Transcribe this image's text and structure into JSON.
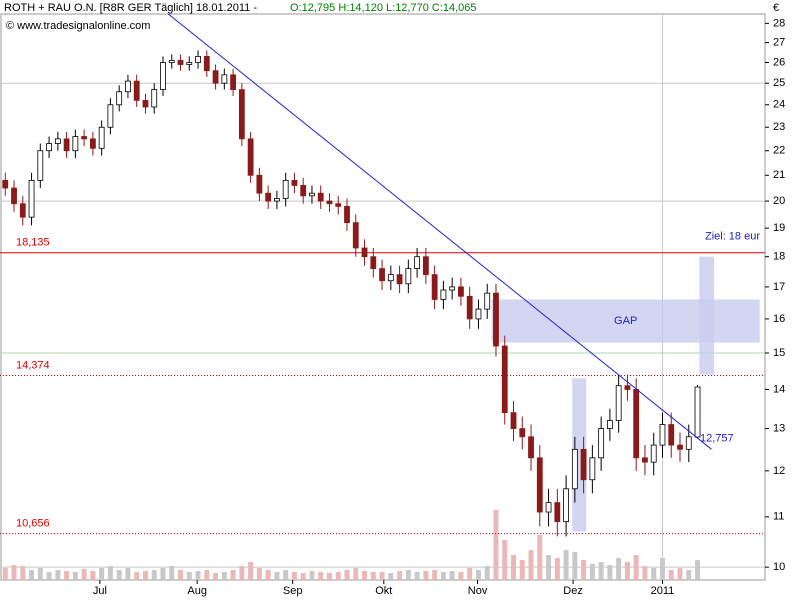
{
  "chart_data": {
    "type": "candlestick",
    "title": "ROTH + RAU O.N. [R8R GER  Täglich] 18.01.2011 -",
    "quote": "O:12,795 H:14,120 L:12,770 C:14,065",
    "subtitle": "© www.tradesignalonline.com",
    "unit": "€",
    "log_scale": true,
    "ylim": [
      9.76,
      28.5
    ],
    "yticks": [
      10,
      11,
      12,
      13,
      14,
      15,
      16,
      17,
      18,
      19,
      20,
      21,
      22,
      23,
      24,
      25,
      26,
      27,
      28
    ],
    "xlim": [
      -0.6,
      86.7
    ],
    "xticks": [
      {
        "value": 10.8,
        "label": "Jul"
      },
      {
        "value": 21.9,
        "label": "Aug"
      },
      {
        "value": 32.8,
        "label": "Sep"
      },
      {
        "value": 43.2,
        "label": "Okt"
      },
      {
        "value": 53.9,
        "label": "Nov"
      },
      {
        "value": 64.8,
        "label": "Dez"
      },
      {
        "value": 75.0,
        "label": "2011"
      }
    ],
    "up_color": "#ffffff",
    "down_color": "#8b1a1a",
    "open": [
      20.8,
      20.5,
      19.9,
      19.4,
      20.8,
      22.0,
      22.3,
      22.5,
      22.0,
      22.6,
      22.5,
      22.1,
      23.0,
      24.0,
      24.6,
      25.1,
      24.2,
      23.9,
      24.7,
      26.0,
      26.1,
      25.9,
      26.0,
      26.3,
      25.6,
      25.0,
      25.4,
      24.7,
      22.5,
      21.0,
      20.3,
      20.0,
      20.1,
      20.8,
      20.6,
      20.2,
      20.3,
      20.0,
      19.9,
      19.8,
      19.2,
      18.3,
      18.0,
      17.6,
      17.2,
      17.4,
      17.1,
      17.6,
      18.0,
      17.4,
      16.6,
      16.9,
      17.0,
      16.7,
      16.0,
      16.3,
      16.8,
      15.2,
      13.4,
      13.0,
      12.8,
      12.3,
      11.1,
      11.3,
      10.9,
      11.6,
      12.5,
      11.8,
      12.3,
      13.0,
      13.2,
      14.1,
      14.0,
      12.3,
      12.2,
      12.6,
      13.1,
      12.6,
      12.5,
      12.795
    ],
    "high": [
      21.1,
      20.8,
      20.2,
      21.1,
      22.3,
      22.6,
      22.8,
      22.8,
      22.9,
      22.9,
      22.8,
      23.3,
      24.3,
      24.9,
      25.4,
      25.4,
      24.5,
      25.0,
      26.3,
      26.4,
      26.4,
      26.3,
      26.6,
      26.6,
      25.9,
      25.7,
      25.7,
      25.0,
      22.8,
      21.3,
      20.6,
      20.4,
      21.1,
      21.1,
      20.9,
      20.6,
      20.6,
      20.3,
      20.2,
      20.1,
      19.5,
      18.6,
      18.3,
      17.9,
      17.7,
      17.7,
      17.9,
      18.3,
      18.3,
      17.7,
      17.2,
      17.3,
      17.3,
      17.0,
      16.6,
      17.1,
      17.1,
      15.5,
      13.7,
      13.3,
      13.1,
      12.6,
      11.6,
      11.6,
      11.9,
      12.8,
      12.8,
      12.6,
      13.3,
      13.5,
      14.4,
      14.4,
      14.3,
      12.6,
      12.9,
      13.4,
      13.4,
      12.9,
      13.1,
      14.12
    ],
    "low": [
      20.2,
      19.6,
      19.1,
      19.1,
      20.5,
      21.7,
      22.0,
      21.7,
      21.7,
      22.2,
      21.8,
      21.8,
      22.7,
      23.7,
      24.3,
      23.9,
      23.6,
      23.6,
      24.4,
      25.7,
      25.6,
      25.6,
      25.7,
      25.3,
      24.7,
      24.7,
      24.4,
      22.2,
      20.7,
      20.0,
      19.7,
      19.7,
      19.8,
      20.3,
      19.9,
      19.9,
      19.7,
      19.6,
      19.5,
      18.9,
      18.0,
      17.7,
      17.3,
      16.9,
      16.9,
      16.8,
      16.8,
      17.3,
      17.1,
      16.3,
      16.3,
      16.6,
      16.4,
      15.7,
      15.7,
      16.0,
      14.9,
      13.1,
      12.7,
      12.5,
      12.0,
      10.8,
      10.8,
      10.6,
      10.6,
      11.3,
      11.5,
      11.5,
      12.0,
      12.7,
      12.9,
      13.7,
      12.0,
      11.9,
      11.9,
      12.3,
      12.3,
      12.2,
      12.2,
      12.77
    ],
    "close": [
      20.5,
      19.9,
      19.4,
      20.8,
      22.0,
      22.3,
      22.5,
      22.0,
      22.6,
      22.5,
      22.1,
      23.0,
      24.0,
      24.6,
      25.1,
      24.2,
      23.9,
      24.7,
      26.0,
      26.1,
      25.9,
      26.0,
      26.3,
      25.6,
      25.0,
      25.4,
      24.7,
      22.5,
      21.0,
      20.3,
      20.0,
      20.1,
      20.8,
      20.6,
      20.2,
      20.3,
      20.0,
      19.9,
      19.8,
      19.2,
      18.3,
      18.0,
      17.6,
      17.2,
      17.4,
      17.1,
      17.6,
      18.0,
      17.4,
      16.6,
      16.9,
      17.0,
      16.7,
      16.0,
      16.3,
      16.8,
      15.2,
      13.4,
      13.0,
      12.8,
      12.3,
      11.1,
      11.3,
      10.9,
      11.6,
      12.5,
      11.8,
      12.3,
      13.0,
      13.2,
      14.1,
      14.0,
      12.3,
      12.2,
      12.6,
      13.1,
      12.6,
      12.5,
      12.8,
      14.065
    ],
    "volume": [
      12,
      15,
      14,
      10,
      12,
      8,
      10,
      9,
      8,
      11,
      9,
      12,
      14,
      10,
      12,
      8,
      9,
      10,
      12,
      14,
      10,
      8,
      9,
      10,
      7,
      8,
      10,
      14,
      18,
      12,
      10,
      8,
      10,
      8,
      7,
      9,
      8,
      7,
      8,
      10,
      12,
      9,
      8,
      8,
      7,
      9,
      10,
      8,
      9,
      10,
      8,
      9,
      8,
      12,
      10,
      14,
      70,
      40,
      25,
      20,
      30,
      45,
      25,
      22,
      30,
      28,
      20,
      16,
      18,
      15,
      22,
      18,
      25,
      14,
      12,
      22,
      10,
      12,
      10,
      20
    ],
    "volume_up_color": "#c8c8c8",
    "volume_down_color": "#eab8b8",
    "levels": [
      {
        "value": 18.135,
        "label": "18,135",
        "style": "solid",
        "color": "#e00000"
      },
      {
        "value": 14.374,
        "label": "14,374",
        "style": "dotted",
        "color": "#e00000"
      },
      {
        "value": 10.656,
        "label": "10,656",
        "style": "dotted",
        "color": "#e00000"
      }
    ],
    "trendline": {
      "x": [
        18.6,
        80.6
      ],
      "y": [
        28.5,
        12.5
      ],
      "color": "#2020d0",
      "label": "12,757",
      "label_value": 12.757
    },
    "gap_zone": {
      "x": [
        55.5,
        86.1
      ],
      "y": [
        15.3,
        16.6
      ],
      "label": "GAP",
      "color": "#c8ccf0"
    },
    "target_zone": {
      "x": [
        79.2,
        80.9
      ],
      "y": [
        14.4,
        18
      ],
      "label": "Ziel: 18 eur",
      "color": "#c8ccf0"
    },
    "support_zone": {
      "x": [
        64.7,
        66.3
      ],
      "y": [
        10.7,
        14.3
      ],
      "color": "#c8ccf0"
    }
  }
}
